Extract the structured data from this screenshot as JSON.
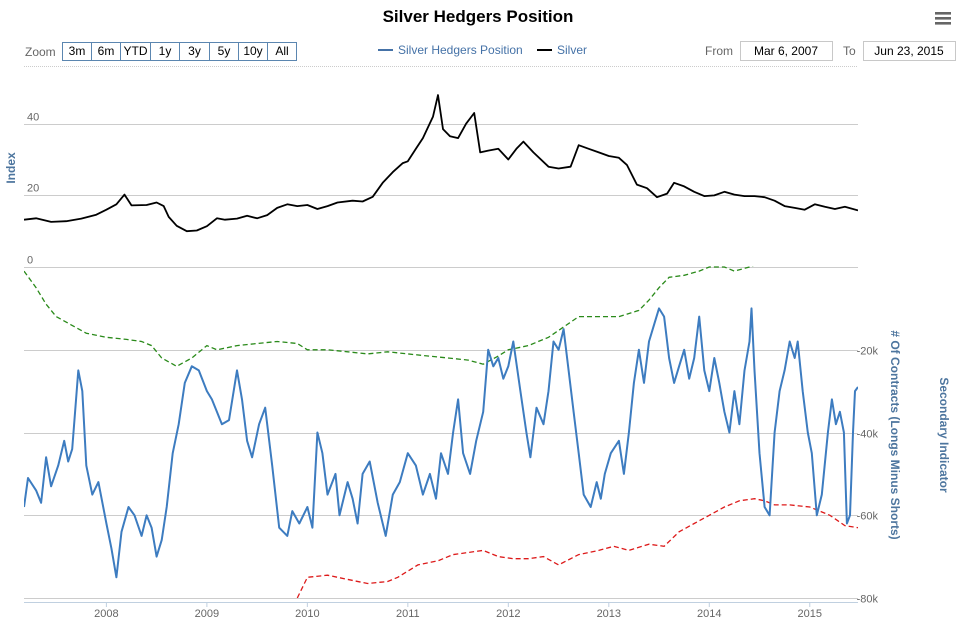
{
  "chart_data": {
    "type": "line",
    "title": "Silver Hedgers Position",
    "zoom": {
      "label": "Zoom",
      "buttons": [
        "3m",
        "6m",
        "YTD",
        "1y",
        "3y",
        "5y",
        "10y",
        "All"
      ]
    },
    "range": {
      "from_label": "From",
      "from_value": "Mar 6, 2007",
      "to_label": "To",
      "to_value": "Jun 23, 2015"
    },
    "legend": [
      {
        "name": "Silver Hedgers Position",
        "color": "#4572a7"
      },
      {
        "name": "Silver",
        "color": "#000000"
      }
    ],
    "x": {
      "start": 2007.18,
      "end": 2015.48,
      "ticks": [
        "2008",
        "2009",
        "2010",
        "2011",
        "2012",
        "2013",
        "2014",
        "2015"
      ]
    },
    "top_panel": {
      "ylabel": "Index",
      "ylim": [
        0,
        55
      ],
      "ticks": [
        "0",
        "20",
        "40"
      ],
      "silver": [
        [
          2007.18,
          13.2
        ],
        [
          2007.3,
          13.6
        ],
        [
          2007.45,
          12.6
        ],
        [
          2007.6,
          12.8
        ],
        [
          2007.75,
          13.5
        ],
        [
          2007.9,
          14.6
        ],
        [
          2008.0,
          16.0
        ],
        [
          2008.1,
          17.5
        ],
        [
          2008.18,
          20.2
        ],
        [
          2008.25,
          17.2
        ],
        [
          2008.4,
          17.3
        ],
        [
          2008.5,
          18.0
        ],
        [
          2008.57,
          17.0
        ],
        [
          2008.62,
          14.0
        ],
        [
          2008.7,
          11.5
        ],
        [
          2008.8,
          10.0
        ],
        [
          2008.9,
          10.2
        ],
        [
          2009.0,
          11.4
        ],
        [
          2009.1,
          13.6
        ],
        [
          2009.18,
          13.2
        ],
        [
          2009.3,
          13.5
        ],
        [
          2009.4,
          14.3
        ],
        [
          2009.5,
          13.6
        ],
        [
          2009.6,
          14.5
        ],
        [
          2009.7,
          16.5
        ],
        [
          2009.8,
          17.5
        ],
        [
          2009.9,
          17.0
        ],
        [
          2010.0,
          17.3
        ],
        [
          2010.1,
          16.2
        ],
        [
          2010.2,
          17.0
        ],
        [
          2010.3,
          18.0
        ],
        [
          2010.45,
          18.5
        ],
        [
          2010.55,
          18.3
        ],
        [
          2010.65,
          19.6
        ],
        [
          2010.75,
          23.5
        ],
        [
          2010.85,
          26.5
        ],
        [
          2010.95,
          29.0
        ],
        [
          2011.0,
          29.5
        ],
        [
          2011.08,
          33.0
        ],
        [
          2011.15,
          36.0
        ],
        [
          2011.25,
          42.0
        ],
        [
          2011.3,
          48.0
        ],
        [
          2011.35,
          38.5
        ],
        [
          2011.42,
          36.5
        ],
        [
          2011.5,
          36.0
        ],
        [
          2011.58,
          40.0
        ],
        [
          2011.66,
          43.0
        ],
        [
          2011.72,
          32.0
        ],
        [
          2011.8,
          32.5
        ],
        [
          2011.9,
          33.0
        ],
        [
          2012.0,
          30.0
        ],
        [
          2012.08,
          33.0
        ],
        [
          2012.15,
          35.0
        ],
        [
          2012.25,
          32.0
        ],
        [
          2012.4,
          28.0
        ],
        [
          2012.5,
          27.5
        ],
        [
          2012.62,
          28.0
        ],
        [
          2012.7,
          34.0
        ],
        [
          2012.8,
          33.0
        ],
        [
          2012.9,
          32.0
        ],
        [
          2013.0,
          31.0
        ],
        [
          2013.1,
          30.5
        ],
        [
          2013.18,
          28.5
        ],
        [
          2013.28,
          23.0
        ],
        [
          2013.38,
          22.0
        ],
        [
          2013.48,
          19.5
        ],
        [
          2013.58,
          20.5
        ],
        [
          2013.65,
          23.5
        ],
        [
          2013.75,
          22.5
        ],
        [
          2013.85,
          21.0
        ],
        [
          2013.95,
          19.8
        ],
        [
          2014.05,
          20.0
        ],
        [
          2014.15,
          21.0
        ],
        [
          2014.25,
          20.2
        ],
        [
          2014.35,
          19.8
        ],
        [
          2014.45,
          19.8
        ],
        [
          2014.55,
          19.5
        ],
        [
          2014.65,
          18.5
        ],
        [
          2014.75,
          17.0
        ],
        [
          2014.85,
          16.5
        ],
        [
          2014.95,
          16.0
        ],
        [
          2015.05,
          17.5
        ],
        [
          2015.15,
          16.8
        ],
        [
          2015.25,
          16.2
        ],
        [
          2015.35,
          16.8
        ],
        [
          2015.48,
          15.8
        ]
      ]
    },
    "bottom_panel": {
      "ylabel": "# Of Contracts (Longs Minus Shorts)",
      "ylim": [
        -80000,
        0
      ],
      "ticks": [
        "-20k",
        "-40k",
        "-60k",
        "-80k"
      ],
      "secondary_ylabel": "Secondary Indicator",
      "hedgers_position": [
        [
          2007.18,
          -58000
        ],
        [
          2007.22,
          -51000
        ],
        [
          2007.3,
          -54000
        ],
        [
          2007.35,
          -57000
        ],
        [
          2007.4,
          -46000
        ],
        [
          2007.45,
          -53000
        ],
        [
          2007.52,
          -48000
        ],
        [
          2007.58,
          -42000
        ],
        [
          2007.62,
          -47000
        ],
        [
          2007.66,
          -44000
        ],
        [
          2007.72,
          -25000
        ],
        [
          2007.76,
          -30000
        ],
        [
          2007.8,
          -48000
        ],
        [
          2007.86,
          -55000
        ],
        [
          2007.92,
          -52000
        ],
        [
          2008.0,
          -62000
        ],
        [
          2008.05,
          -68000
        ],
        [
          2008.1,
          -75000
        ],
        [
          2008.15,
          -64000
        ],
        [
          2008.22,
          -58000
        ],
        [
          2008.28,
          -60000
        ],
        [
          2008.35,
          -65000
        ],
        [
          2008.4,
          -60000
        ],
        [
          2008.45,
          -63000
        ],
        [
          2008.5,
          -70000
        ],
        [
          2008.55,
          -66000
        ],
        [
          2008.6,
          -58000
        ],
        [
          2008.66,
          -45000
        ],
        [
          2008.72,
          -38000
        ],
        [
          2008.78,
          -28000
        ],
        [
          2008.85,
          -24000
        ],
        [
          2008.92,
          -25000
        ],
        [
          2009.0,
          -30000
        ],
        [
          2009.05,
          -32000
        ],
        [
          2009.1,
          -35000
        ],
        [
          2009.15,
          -38000
        ],
        [
          2009.22,
          -37000
        ],
        [
          2009.3,
          -25000
        ],
        [
          2009.35,
          -32000
        ],
        [
          2009.4,
          -42000
        ],
        [
          2009.45,
          -46000
        ],
        [
          2009.52,
          -38000
        ],
        [
          2009.58,
          -34000
        ],
        [
          2009.65,
          -48000
        ],
        [
          2009.72,
          -63000
        ],
        [
          2009.8,
          -65000
        ],
        [
          2009.85,
          -59000
        ],
        [
          2009.92,
          -62000
        ],
        [
          2010.0,
          -58000
        ],
        [
          2010.05,
          -63000
        ],
        [
          2010.1,
          -40000
        ],
        [
          2010.15,
          -45000
        ],
        [
          2010.2,
          -55000
        ],
        [
          2010.28,
          -50000
        ],
        [
          2010.32,
          -60000
        ],
        [
          2010.4,
          -52000
        ],
        [
          2010.45,
          -56000
        ],
        [
          2010.5,
          -62000
        ],
        [
          2010.55,
          -50000
        ],
        [
          2010.62,
          -47000
        ],
        [
          2010.7,
          -57000
        ],
        [
          2010.78,
          -65000
        ],
        [
          2010.85,
          -55000
        ],
        [
          2010.92,
          -52000
        ],
        [
          2011.0,
          -45000
        ],
        [
          2011.08,
          -48000
        ],
        [
          2011.15,
          -55000
        ],
        [
          2011.22,
          -50000
        ],
        [
          2011.28,
          -56000
        ],
        [
          2011.33,
          -45000
        ],
        [
          2011.4,
          -50000
        ],
        [
          2011.45,
          -40000
        ],
        [
          2011.5,
          -32000
        ],
        [
          2011.55,
          -45000
        ],
        [
          2011.62,
          -50000
        ],
        [
          2011.68,
          -42000
        ],
        [
          2011.75,
          -35000
        ],
        [
          2011.8,
          -20000
        ],
        [
          2011.85,
          -24000
        ],
        [
          2011.9,
          -22000
        ],
        [
          2011.95,
          -27000
        ],
        [
          2012.0,
          -24000
        ],
        [
          2012.05,
          -18000
        ],
        [
          2012.12,
          -30000
        ],
        [
          2012.18,
          -40000
        ],
        [
          2012.22,
          -46000
        ],
        [
          2012.28,
          -34000
        ],
        [
          2012.35,
          -38000
        ],
        [
          2012.4,
          -30000
        ],
        [
          2012.45,
          -18000
        ],
        [
          2012.5,
          -20000
        ],
        [
          2012.55,
          -15000
        ],
        [
          2012.6,
          -25000
        ],
        [
          2012.65,
          -35000
        ],
        [
          2012.7,
          -45000
        ],
        [
          2012.75,
          -55000
        ],
        [
          2012.82,
          -58000
        ],
        [
          2012.88,
          -52000
        ],
        [
          2012.92,
          -56000
        ],
        [
          2012.96,
          -50000
        ],
        [
          2013.02,
          -45000
        ],
        [
          2013.1,
          -42000
        ],
        [
          2013.15,
          -50000
        ],
        [
          2013.2,
          -40000
        ],
        [
          2013.25,
          -28000
        ],
        [
          2013.3,
          -20000
        ],
        [
          2013.35,
          -28000
        ],
        [
          2013.4,
          -18000
        ],
        [
          2013.45,
          -14000
        ],
        [
          2013.5,
          -10000
        ],
        [
          2013.55,
          -12000
        ],
        [
          2013.6,
          -22000
        ],
        [
          2013.65,
          -28000
        ],
        [
          2013.7,
          -24000
        ],
        [
          2013.75,
          -20000
        ],
        [
          2013.8,
          -27000
        ],
        [
          2013.85,
          -22000
        ],
        [
          2013.9,
          -12000
        ],
        [
          2013.95,
          -25000
        ],
        [
          2014.0,
          -30000
        ],
        [
          2014.05,
          -22000
        ],
        [
          2014.1,
          -28000
        ],
        [
          2014.15,
          -35000
        ],
        [
          2014.2,
          -40000
        ],
        [
          2014.25,
          -30000
        ],
        [
          2014.3,
          -38000
        ],
        [
          2014.35,
          -25000
        ],
        [
          2014.4,
          -18000
        ],
        [
          2014.42,
          -10000
        ],
        [
          2014.45,
          -25000
        ],
        [
          2014.5,
          -45000
        ],
        [
          2014.55,
          -58000
        ],
        [
          2014.6,
          -60000
        ],
        [
          2014.65,
          -40000
        ],
        [
          2014.7,
          -30000
        ],
        [
          2014.75,
          -25000
        ],
        [
          2014.8,
          -18000
        ],
        [
          2014.85,
          -22000
        ],
        [
          2014.88,
          -18000
        ],
        [
          2014.93,
          -30000
        ],
        [
          2014.98,
          -40000
        ],
        [
          2015.02,
          -45000
        ],
        [
          2015.07,
          -60000
        ],
        [
          2015.12,
          -55000
        ],
        [
          2015.18,
          -40000
        ],
        [
          2015.22,
          -32000
        ],
        [
          2015.26,
          -38000
        ],
        [
          2015.3,
          -35000
        ],
        [
          2015.34,
          -40000
        ],
        [
          2015.37,
          -62000
        ],
        [
          2015.4,
          -60000
        ],
        [
          2015.43,
          -40000
        ],
        [
          2015.45,
          -30000
        ],
        [
          2015.48,
          -29000
        ]
      ],
      "upper_indicator": [
        [
          2007.18,
          -1000
        ],
        [
          2007.3,
          -5000
        ],
        [
          2007.4,
          -9000
        ],
        [
          2007.5,
          -12000
        ],
        [
          2007.65,
          -14000
        ],
        [
          2007.8,
          -16000
        ],
        [
          2008.0,
          -17000
        ],
        [
          2008.2,
          -17500
        ],
        [
          2008.35,
          -18000
        ],
        [
          2008.45,
          -19000
        ],
        [
          2008.55,
          -22000
        ],
        [
          2008.7,
          -24000
        ],
        [
          2008.85,
          -22000
        ],
        [
          2009.0,
          -19000
        ],
        [
          2009.1,
          -20000
        ],
        [
          2009.3,
          -19000
        ],
        [
          2009.5,
          -18500
        ],
        [
          2009.7,
          -18000
        ],
        [
          2009.9,
          -18500
        ],
        [
          2010.0,
          -20000
        ],
        [
          2010.2,
          -20000
        ],
        [
          2010.4,
          -20500
        ],
        [
          2010.6,
          -21000
        ],
        [
          2010.8,
          -20500
        ],
        [
          2011.0,
          -21000
        ],
        [
          2011.2,
          -21500
        ],
        [
          2011.4,
          -22000
        ],
        [
          2011.6,
          -22500
        ],
        [
          2011.75,
          -23500
        ],
        [
          2011.9,
          -21500
        ],
        [
          2012.0,
          -20000
        ],
        [
          2012.2,
          -19000
        ],
        [
          2012.4,
          -17000
        ],
        [
          2012.55,
          -14500
        ],
        [
          2012.7,
          -12000
        ],
        [
          2012.9,
          -12000
        ],
        [
          2013.1,
          -12000
        ],
        [
          2013.3,
          -10500
        ],
        [
          2013.4,
          -8000
        ],
        [
          2013.5,
          -5000
        ],
        [
          2013.6,
          -2500
        ],
        [
          2013.75,
          -2000
        ],
        [
          2013.9,
          -1000
        ],
        [
          2014.0,
          0
        ],
        [
          2014.15,
          0
        ],
        [
          2014.25,
          -1000
        ],
        [
          2014.4,
          0
        ],
        [
          2014.5,
          1000
        ],
        [
          2014.7,
          1500
        ],
        [
          2014.9,
          1500
        ],
        [
          2015.1,
          1500
        ],
        [
          2015.48,
          1500
        ]
      ],
      "lower_indicator": [
        [
          2009.9,
          -80000
        ],
        [
          2010.0,
          -75000
        ],
        [
          2010.2,
          -74500
        ],
        [
          2010.4,
          -75500
        ],
        [
          2010.6,
          -76500
        ],
        [
          2010.8,
          -76000
        ],
        [
          2010.9,
          -75000
        ],
        [
          2011.1,
          -72000
        ],
        [
          2011.3,
          -71000
        ],
        [
          2011.45,
          -69500
        ],
        [
          2011.6,
          -69000
        ],
        [
          2011.75,
          -68500
        ],
        [
          2011.9,
          -70000
        ],
        [
          2012.05,
          -70500
        ],
        [
          2012.2,
          -70500
        ],
        [
          2012.35,
          -70000
        ],
        [
          2012.5,
          -72000
        ],
        [
          2012.7,
          -69500
        ],
        [
          2012.9,
          -68500
        ],
        [
          2013.05,
          -67500
        ],
        [
          2013.2,
          -68500
        ],
        [
          2013.4,
          -67000
        ],
        [
          2013.55,
          -67500
        ],
        [
          2013.7,
          -64000
        ],
        [
          2013.85,
          -62000
        ],
        [
          2014.0,
          -60000
        ],
        [
          2014.15,
          -58000
        ],
        [
          2014.3,
          -56500
        ],
        [
          2014.45,
          -56000
        ],
        [
          2014.55,
          -56500
        ],
        [
          2014.65,
          -57500
        ],
        [
          2014.8,
          -57500
        ],
        [
          2015.0,
          -58000
        ],
        [
          2015.2,
          -60000
        ],
        [
          2015.35,
          -62500
        ],
        [
          2015.48,
          -63000
        ]
      ]
    }
  }
}
